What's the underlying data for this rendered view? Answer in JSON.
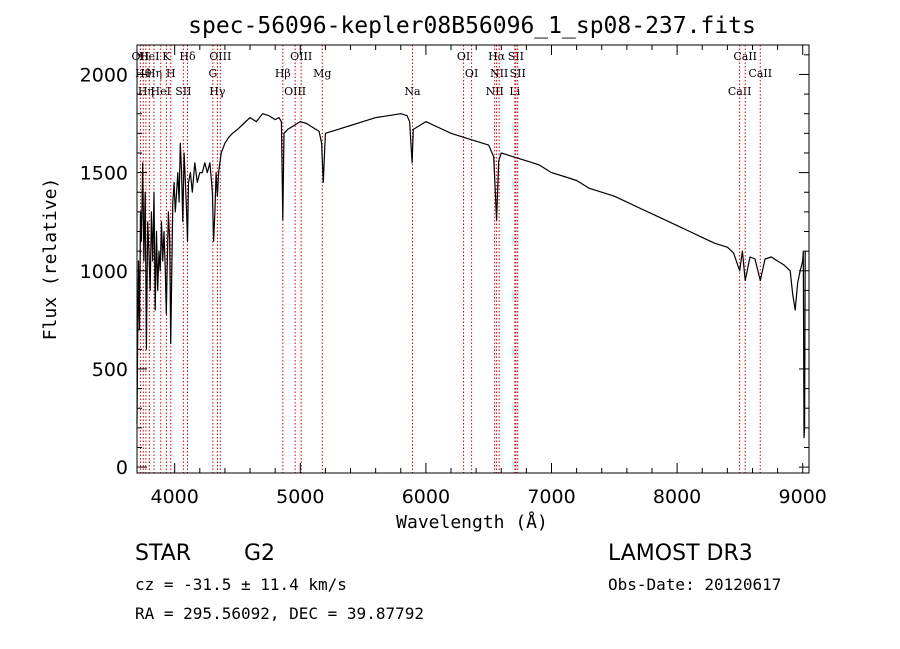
{
  "chart_data": {
    "type": "line",
    "title": "spec-56096-kepler08B56096_1_sp08-237.fits",
    "xlabel": "Wavelength (Å)",
    "ylabel": "Flux (relative)",
    "xlim": [
      3700,
      9050
    ],
    "ylim": [
      -30,
      2150
    ],
    "xticks": [
      4000,
      5000,
      6000,
      7000,
      8000,
      9000
    ],
    "yticks": [
      0,
      500,
      1000,
      1500,
      2000
    ],
    "grid": false,
    "series": [
      {
        "name": "flux",
        "x": [
          3700,
          3705,
          3712,
          3720,
          3728,
          3735,
          3745,
          3755,
          3765,
          3775,
          3785,
          3795,
          3805,
          3815,
          3825,
          3835,
          3845,
          3855,
          3865,
          3875,
          3885,
          3895,
          3905,
          3915,
          3925,
          3933,
          3940,
          3950,
          3960,
          3968,
          3975,
          3985,
          3995,
          4005,
          4015,
          4025,
          4035,
          4045,
          4055,
          4065,
          4075,
          4085,
          4095,
          4102,
          4110,
          4125,
          4140,
          4160,
          4180,
          4200,
          4220,
          4240,
          4260,
          4280,
          4300,
          4310,
          4320,
          4330,
          4340,
          4350,
          4370,
          4400,
          4430,
          4460,
          4500,
          4550,
          4600,
          4650,
          4700,
          4750,
          4800,
          4830,
          4850,
          4861,
          4870,
          4900,
          4950,
          5000,
          5050,
          5100,
          5150,
          5170,
          5183,
          5200,
          5300,
          5400,
          5500,
          5600,
          5700,
          5800,
          5850,
          5870,
          5890,
          5900,
          5950,
          6000,
          6100,
          6200,
          6300,
          6400,
          6500,
          6540,
          6563,
          6580,
          6600,
          6700,
          6800,
          6900,
          7000,
          7100,
          7200,
          7300,
          7400,
          7500,
          7600,
          7700,
          7800,
          7900,
          8000,
          8100,
          8200,
          8300,
          8400,
          8450,
          8498,
          8520,
          8542,
          8580,
          8620,
          8662,
          8700,
          8750,
          8800,
          8850,
          8900,
          8920,
          8940,
          8960,
          8980,
          9000,
          9005,
          9010,
          9015,
          9020
        ],
        "values": [
          220,
          600,
          1050,
          700,
          1300,
          1150,
          1550,
          1050,
          1400,
          600,
          1250,
          1100,
          900,
          1300,
          1050,
          1400,
          800,
          1200,
          900,
          1100,
          1000,
          1250,
          1050,
          1200,
          1000,
          780,
          1000,
          1300,
          1150,
          630,
          900,
          1350,
          1450,
          1300,
          1400,
          1500,
          1350,
          1650,
          1500,
          1250,
          1600,
          1450,
          1300,
          1150,
          1450,
          1500,
          1400,
          1550,
          1450,
          1500,
          1500,
          1550,
          1500,
          1550,
          1400,
          1150,
          1300,
          1500,
          1380,
          1500,
          1600,
          1650,
          1680,
          1700,
          1720,
          1750,
          1780,
          1760,
          1800,
          1790,
          1770,
          1780,
          1760,
          1260,
          1700,
          1720,
          1740,
          1760,
          1750,
          1730,
          1710,
          1650,
          1450,
          1700,
          1720,
          1740,
          1760,
          1780,
          1790,
          1800,
          1790,
          1760,
          1550,
          1720,
          1740,
          1760,
          1730,
          1700,
          1680,
          1660,
          1640,
          1580,
          1260,
          1560,
          1600,
          1580,
          1560,
          1540,
          1500,
          1480,
          1460,
          1420,
          1400,
          1380,
          1350,
          1320,
          1290,
          1260,
          1230,
          1200,
          1170,
          1140,
          1120,
          1090,
          1000,
          1100,
          950,
          1070,
          1060,
          950,
          1060,
          1070,
          1050,
          1030,
          1000,
          880,
          800,
          940,
          1000,
          1050,
          1100,
          150,
          200,
          1100
        ]
      }
    ],
    "line_markers": [
      {
        "x": 3727,
        "label": "OII"
      },
      {
        "x": 3750,
        "label": "Hθ"
      },
      {
        "x": 3771,
        "label": "Hη"
      },
      {
        "x": 3798,
        "label": "HeI"
      },
      {
        "x": 3835,
        "label": "Hη"
      },
      {
        "x": 3889,
        "label": "HeI"
      },
      {
        "x": 3934,
        "label": "K"
      },
      {
        "x": 3969,
        "label": "H"
      },
      {
        "x": 4069,
        "label": "SII"
      },
      {
        "x": 4102,
        "label": "Hδ"
      },
      {
        "x": 4304,
        "label": "G"
      },
      {
        "x": 4340,
        "label": "Hγ"
      },
      {
        "x": 4363,
        "label": "OIII"
      },
      {
        "x": 4861,
        "label": "Hβ"
      },
      {
        "x": 4959,
        "label": "OIII"
      },
      {
        "x": 5007,
        "label": "OIII"
      },
      {
        "x": 5175,
        "label": "Mg"
      },
      {
        "x": 5893,
        "label": "Na"
      },
      {
        "x": 6300,
        "label": "OI"
      },
      {
        "x": 6364,
        "label": "OI"
      },
      {
        "x": 6548,
        "label": "NII"
      },
      {
        "x": 6563,
        "label": "Hα"
      },
      {
        "x": 6583,
        "label": "NII"
      },
      {
        "x": 6708,
        "label": "Li"
      },
      {
        "x": 6716,
        "label": "SII"
      },
      {
        "x": 6731,
        "label": "SII"
      },
      {
        "x": 8498,
        "label": "CaII"
      },
      {
        "x": 8542,
        "label": "CaII"
      },
      {
        "x": 8662,
        "label": "CaII"
      }
    ],
    "line_color": "#000000",
    "marker_color": "#cc0000"
  },
  "info": {
    "class": "STAR",
    "subclass": "G2",
    "survey": "LAMOST DR3",
    "cz": "cz = -31.5 ± 11.4 km/s",
    "obs_date": "Obs-Date: 20120617",
    "coords": "RA = 295.56092, DEC =  39.87792"
  }
}
